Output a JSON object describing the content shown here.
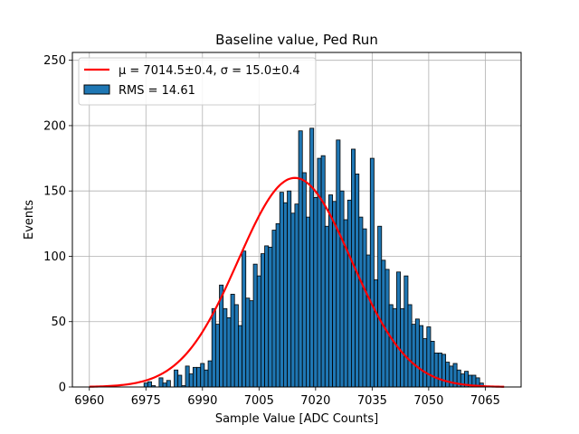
{
  "chart_data": {
    "type": "bar",
    "title": "Baseline value, Ped Run",
    "xlabel": "Sample Value [ADC Counts]",
    "ylabel": "Events",
    "xlim": [
      6955.5,
      7074.5
    ],
    "ylim": [
      0,
      256
    ],
    "grid": true,
    "x_ticks": [
      6960,
      6975,
      6990,
      7005,
      7020,
      7035,
      7050,
      7065
    ],
    "y_ticks": [
      0,
      50,
      100,
      150,
      200,
      250
    ],
    "legend": {
      "position": "top-left",
      "entries": [
        "μ = 7014.5±0.4, σ = 15.0±0.4",
        "RMS = 14.61"
      ]
    },
    "colors": {
      "bars": "#1f77b4",
      "bar_edge": "#000000",
      "fit": "#ff0000",
      "grid": "#b0b0b0"
    },
    "histogram": {
      "name": "RMS = 14.61",
      "bins": [
        [
          6975,
          3
        ],
        [
          6976,
          4
        ],
        [
          6977,
          1
        ],
        [
          6978,
          0
        ],
        [
          6979,
          7
        ],
        [
          6980,
          3
        ],
        [
          6981,
          5
        ],
        [
          6982,
          0
        ],
        [
          6983,
          13
        ],
        [
          6984,
          9
        ],
        [
          6985,
          1
        ],
        [
          6986,
          16
        ],
        [
          6987,
          10
        ],
        [
          6988,
          15
        ],
        [
          6989,
          15
        ],
        [
          6990,
          18
        ],
        [
          6991,
          13
        ],
        [
          6992,
          20
        ],
        [
          6993,
          60
        ],
        [
          6994,
          48
        ],
        [
          6995,
          78
        ],
        [
          6996,
          60
        ],
        [
          6997,
          53
        ],
        [
          6998,
          71
        ],
        [
          6999,
          63
        ],
        [
          7000,
          47
        ],
        [
          7001,
          104
        ],
        [
          7002,
          68
        ],
        [
          7003,
          66
        ],
        [
          7004,
          94
        ],
        [
          7005,
          85
        ],
        [
          7006,
          102
        ],
        [
          7007,
          108
        ],
        [
          7008,
          107
        ],
        [
          7009,
          120
        ],
        [
          7010,
          125
        ],
        [
          7011,
          149
        ],
        [
          7012,
          141
        ],
        [
          7013,
          150
        ],
        [
          7014,
          133
        ],
        [
          7015,
          140
        ],
        [
          7016,
          196
        ],
        [
          7017,
          164
        ],
        [
          7018,
          130
        ],
        [
          7019,
          198
        ],
        [
          7020,
          145
        ],
        [
          7021,
          175
        ],
        [
          7022,
          177
        ],
        [
          7023,
          123
        ],
        [
          7024,
          147
        ],
        [
          7025,
          142
        ],
        [
          7026,
          189
        ],
        [
          7027,
          150
        ],
        [
          7028,
          128
        ],
        [
          7029,
          143
        ],
        [
          7030,
          182
        ],
        [
          7031,
          163
        ],
        [
          7032,
          130
        ],
        [
          7033,
          121
        ],
        [
          7034,
          101
        ],
        [
          7035,
          175
        ],
        [
          7036,
          82
        ],
        [
          7037,
          123
        ],
        [
          7038,
          97
        ],
        [
          7039,
          90
        ],
        [
          7040,
          63
        ],
        [
          7041,
          60
        ],
        [
          7042,
          88
        ],
        [
          7043,
          60
        ],
        [
          7044,
          85
        ],
        [
          7045,
          63
        ],
        [
          7046,
          48
        ],
        [
          7047,
          52
        ],
        [
          7048,
          47
        ],
        [
          7049,
          37
        ],
        [
          7050,
          46
        ],
        [
          7051,
          35
        ],
        [
          7052,
          26
        ],
        [
          7053,
          26
        ],
        [
          7054,
          25
        ],
        [
          7055,
          19
        ],
        [
          7056,
          16
        ],
        [
          7057,
          18
        ],
        [
          7058,
          13
        ],
        [
          7059,
          10
        ],
        [
          7060,
          12
        ],
        [
          7061,
          9
        ],
        [
          7062,
          9
        ],
        [
          7063,
          7
        ],
        [
          7064,
          3
        ]
      ]
    },
    "fit": {
      "name": "μ = 7014.5±0.4, σ = 15.0±0.4",
      "type": "gaussian",
      "mu": 7014.5,
      "sigma": 15.0,
      "amplitude": 160,
      "x_range": [
        6960,
        7070
      ]
    }
  }
}
